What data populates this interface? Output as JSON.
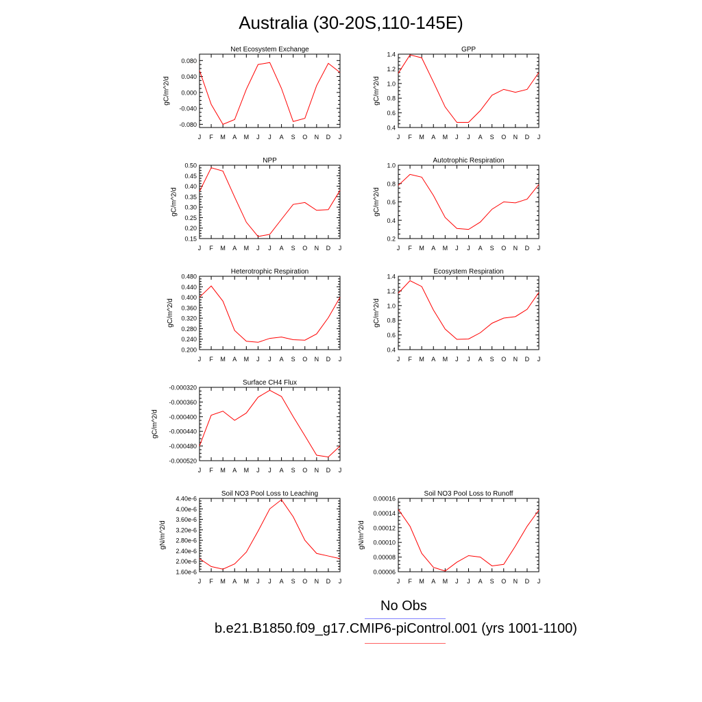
{
  "page": {
    "title": "Australia (30-20S,110-145E)"
  },
  "legend": {
    "obs_label": "No Obs",
    "obs_color": "#8080ff",
    "model_label": "b.e21.B1850.f09_g17.CMIP6-piControl.001 (yrs 1001-1100)",
    "model_color": "#ff6060"
  },
  "line_color": "#ff0000",
  "chart_data": [
    {
      "type": "line",
      "title": "Net Ecosystem Exchange",
      "ylabel": "gC/m^2/d",
      "x": [
        "J",
        "F",
        "M",
        "A",
        "M",
        "J",
        "J",
        "A",
        "S",
        "O",
        "N",
        "D",
        "J"
      ],
      "ylim": [
        -0.088,
        0.096
      ],
      "yticks": [
        -0.08,
        -0.04,
        0.0,
        0.04,
        0.08
      ],
      "yticklabels": [
        "-0.080",
        "-0.040",
        "0.000",
        "0.040",
        "0.080"
      ],
      "series": [
        {
          "values": [
            0.055,
            -0.03,
            -0.08,
            -0.068,
            0.008,
            0.07,
            0.075,
            0.01,
            -0.073,
            -0.065,
            0.017,
            0.073,
            0.05
          ]
        }
      ]
    },
    {
      "type": "line",
      "title": "GPP",
      "ylabel": "gC/m^2/d",
      "x": [
        "J",
        "F",
        "M",
        "A",
        "M",
        "J",
        "J",
        "A",
        "S",
        "O",
        "N",
        "D",
        "J"
      ],
      "ylim": [
        0.4,
        1.4
      ],
      "yticks": [
        0.4,
        0.6,
        0.8,
        1.0,
        1.2,
        1.4
      ],
      "yticklabels": [
        "0.4",
        "0.6",
        "0.8",
        "1.0",
        "1.2",
        "1.4"
      ],
      "series": [
        {
          "values": [
            1.14,
            1.39,
            1.35,
            1.02,
            0.68,
            0.47,
            0.47,
            0.63,
            0.84,
            0.92,
            0.88,
            0.92,
            1.15
          ]
        }
      ]
    },
    {
      "type": "line",
      "title": "NPP",
      "ylabel": "gC/m^2/d",
      "x": [
        "J",
        "F",
        "M",
        "A",
        "M",
        "J",
        "J",
        "A",
        "S",
        "O",
        "N",
        "D",
        "J"
      ],
      "ylim": [
        0.15,
        0.5
      ],
      "yticks": [
        0.15,
        0.2,
        0.25,
        0.3,
        0.35,
        0.4,
        0.45,
        0.5
      ],
      "yticklabels": [
        "0.15",
        "0.20",
        "0.25",
        "0.30",
        "0.35",
        "0.40",
        "0.45",
        "0.50"
      ],
      "series": [
        {
          "values": [
            0.375,
            0.488,
            0.472,
            0.348,
            0.228,
            0.16,
            0.17,
            0.242,
            0.313,
            0.322,
            0.285,
            0.288,
            0.38
          ]
        }
      ]
    },
    {
      "type": "line",
      "title": "Autotrophic Respiration",
      "ylabel": "gC/m^2/d",
      "x": [
        "J",
        "F",
        "M",
        "A",
        "M",
        "J",
        "J",
        "A",
        "S",
        "O",
        "N",
        "D",
        "J"
      ],
      "ylim": [
        0.2,
        1.0
      ],
      "yticks": [
        0.2,
        0.4,
        0.6,
        0.8,
        1.0
      ],
      "yticklabels": [
        "0.2",
        "0.4",
        "0.6",
        "0.8",
        "1.0"
      ],
      "series": [
        {
          "values": [
            0.78,
            0.9,
            0.87,
            0.67,
            0.43,
            0.31,
            0.3,
            0.38,
            0.52,
            0.6,
            0.59,
            0.63,
            0.79
          ]
        }
      ]
    },
    {
      "type": "line",
      "title": "Heterotrophic Respiration",
      "ylabel": "gC/m^2/d",
      "x": [
        "J",
        "F",
        "M",
        "A",
        "M",
        "J",
        "J",
        "A",
        "S",
        "O",
        "N",
        "D",
        "J"
      ],
      "ylim": [
        0.2,
        0.48
      ],
      "yticks": [
        0.2,
        0.24,
        0.28,
        0.32,
        0.36,
        0.4,
        0.44,
        0.48
      ],
      "yticklabels": [
        "0.200",
        "0.240",
        "0.280",
        "0.320",
        "0.360",
        "0.400",
        "0.440",
        "0.480"
      ],
      "series": [
        {
          "values": [
            0.4,
            0.443,
            0.385,
            0.273,
            0.232,
            0.228,
            0.243,
            0.248,
            0.238,
            0.236,
            0.26,
            0.322,
            0.4
          ]
        }
      ]
    },
    {
      "type": "line",
      "title": "Ecosystem Respiration",
      "ylabel": "gC/m^2/d",
      "x": [
        "J",
        "F",
        "M",
        "A",
        "M",
        "J",
        "J",
        "A",
        "S",
        "O",
        "N",
        "D",
        "J"
      ],
      "ylim": [
        0.4,
        1.4
      ],
      "yticks": [
        0.4,
        0.6,
        0.8,
        1.0,
        1.2,
        1.4
      ],
      "yticklabels": [
        "0.4",
        "0.6",
        "0.8",
        "1.0",
        "1.2",
        "1.4"
      ],
      "series": [
        {
          "values": [
            1.17,
            1.34,
            1.26,
            0.94,
            0.68,
            0.54,
            0.545,
            0.63,
            0.76,
            0.83,
            0.85,
            0.95,
            1.18
          ]
        }
      ]
    },
    {
      "type": "line",
      "title": "Surface CH4 Flux",
      "ylabel": "gC/m^2/d",
      "x": [
        "J",
        "F",
        "M",
        "A",
        "M",
        "J",
        "J",
        "A",
        "S",
        "O",
        "N",
        "D",
        "J"
      ],
      "ylim": [
        -0.00052,
        -0.00032
      ],
      "yticks": [
        -0.00052,
        -0.00048,
        -0.00044,
        -0.0004,
        -0.00036,
        -0.00032
      ],
      "yticklabels": [
        "-0.000520",
        "-0.000480",
        "-0.000440",
        "-0.000400",
        "-0.000360",
        "-0.000320"
      ],
      "series": [
        {
          "values": [
            -0.00048,
            -0.000396,
            -0.000385,
            -0.00041,
            -0.00039,
            -0.000347,
            -0.000328,
            -0.000345,
            -0.0004,
            -0.000452,
            -0.000505,
            -0.00051,
            -0.00048
          ]
        }
      ]
    },
    {
      "type": "line",
      "title": "Soil NO3 Pool Loss to Leaching",
      "ylabel": "gN/m^2/d",
      "x": [
        "J",
        "F",
        "M",
        "A",
        "M",
        "J",
        "J",
        "A",
        "S",
        "O",
        "N",
        "D",
        "J"
      ],
      "ylim": [
        1.6e-06,
        4.4e-06
      ],
      "yticks": [
        1.6e-06,
        2e-06,
        2.4e-06,
        2.8e-06,
        3.2e-06,
        3.6e-06,
        4e-06,
        4.4e-06
      ],
      "yticklabels": [
        "1.60e-6",
        "2.00e-6",
        "2.40e-6",
        "2.80e-6",
        "3.20e-6",
        "3.60e-6",
        "4.00e-6",
        "4.40e-6"
      ],
      "series": [
        {
          "values": [
            2.1e-06,
            1.8e-06,
            1.7e-06,
            1.9e-06,
            2.35e-06,
            3.15e-06,
            4e-06,
            4.35e-06,
            3.7e-06,
            2.8e-06,
            2.3e-06,
            2.2e-06,
            2.1e-06
          ]
        }
      ]
    },
    {
      "type": "line",
      "title": "Soil NO3 Pool Loss to Runoff",
      "ylabel": "gN/m^2/d",
      "x": [
        "J",
        "F",
        "M",
        "A",
        "M",
        "J",
        "J",
        "A",
        "S",
        "O",
        "N",
        "D",
        "J"
      ],
      "ylim": [
        6e-05,
        0.00016
      ],
      "yticks": [
        6e-05,
        8e-05,
        0.0001,
        0.00012,
        0.00014,
        0.00016
      ],
      "yticklabels": [
        "0.00006",
        "0.00008",
        "0.00010",
        "0.00012",
        "0.00014",
        "0.00016"
      ],
      "series": [
        {
          "values": [
            0.000145,
            0.000122,
            8.5e-05,
            6.6e-05,
            6.1e-05,
            7.3e-05,
            8.2e-05,
            8e-05,
            6.8e-05,
            7e-05,
            9.5e-05,
            0.000122,
            0.000144
          ]
        }
      ]
    }
  ]
}
